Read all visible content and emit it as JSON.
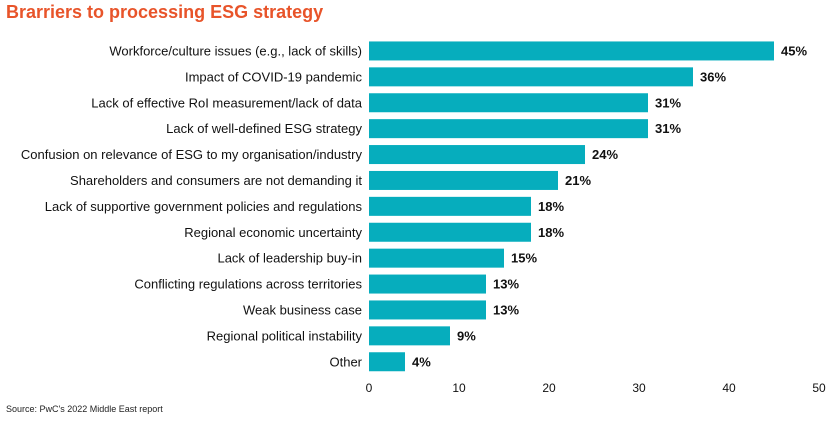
{
  "title": "Brarriers to processing ESG strategy",
  "source": "Source: PwC's 2022 Middle East report",
  "colors": {
    "bar": "#06adbd",
    "title": "#e8542a"
  },
  "chart_data": {
    "type": "bar",
    "orientation": "horizontal",
    "title": "Brarriers to processing ESG strategy",
    "categories": [
      "Workforce/culture issues (e.g., lack of skills)",
      "Impact of COVID-19 pandemic",
      "Lack of effective RoI measurement/lack of data",
      "Lack of well-defined ESG strategy",
      "Confusion on relevance of ESG to my organisation/industry",
      "Shareholders and consumers are not demanding it",
      "Lack of supportive government policies and regulations",
      "Regional economic uncertainty",
      "Lack of leadership buy-in",
      "Conflicting regulations across territories",
      "Weak business case",
      "Regional political instability",
      "Other"
    ],
    "values": [
      45,
      36,
      31,
      31,
      24,
      21,
      18,
      18,
      15,
      13,
      13,
      9,
      4
    ],
    "value_labels": [
      "45%",
      "36%",
      "31%",
      "31%",
      "24%",
      "21%",
      "18%",
      "18%",
      "15%",
      "13%",
      "13%",
      "9%",
      "4%"
    ],
    "xlim": [
      0,
      50
    ],
    "xticks": [
      0,
      10,
      20,
      30,
      40,
      50
    ],
    "grid": false,
    "legend": "none"
  }
}
